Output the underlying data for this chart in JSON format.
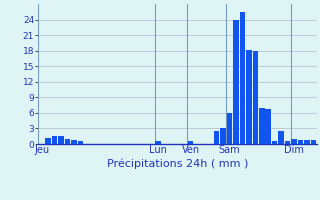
{
  "xlabel": "Précipitations 24h ( mm )",
  "bar_color": "#1155ee",
  "background_color": "#dff5f5",
  "grid_color": "#aabbcc",
  "text_color": "#2233bb",
  "ylim": [
    0,
    27
  ],
  "yticks": [
    0,
    3,
    6,
    9,
    12,
    15,
    18,
    21,
    24
  ],
  "day_labels": [
    "Jeu",
    "Lun",
    "Ven",
    "Sam",
    "Dim"
  ],
  "day_positions": [
    0,
    18,
    23,
    29,
    39
  ],
  "day_line_positions": [
    0,
    18,
    23,
    29,
    39
  ],
  "values": [
    0,
    1.2,
    1.5,
    1.5,
    1.0,
    0.7,
    0.5,
    0,
    0,
    0,
    0,
    0,
    0,
    0,
    0,
    0,
    0,
    0,
    0.5,
    0,
    0,
    0,
    0,
    0.6,
    0,
    0,
    0,
    2.5,
    3.0,
    6.0,
    24.0,
    25.5,
    18.2,
    18.0,
    7.0,
    6.8,
    0.5,
    2.5,
    0.5,
    1.0,
    0.7,
    0.7,
    0.7
  ]
}
